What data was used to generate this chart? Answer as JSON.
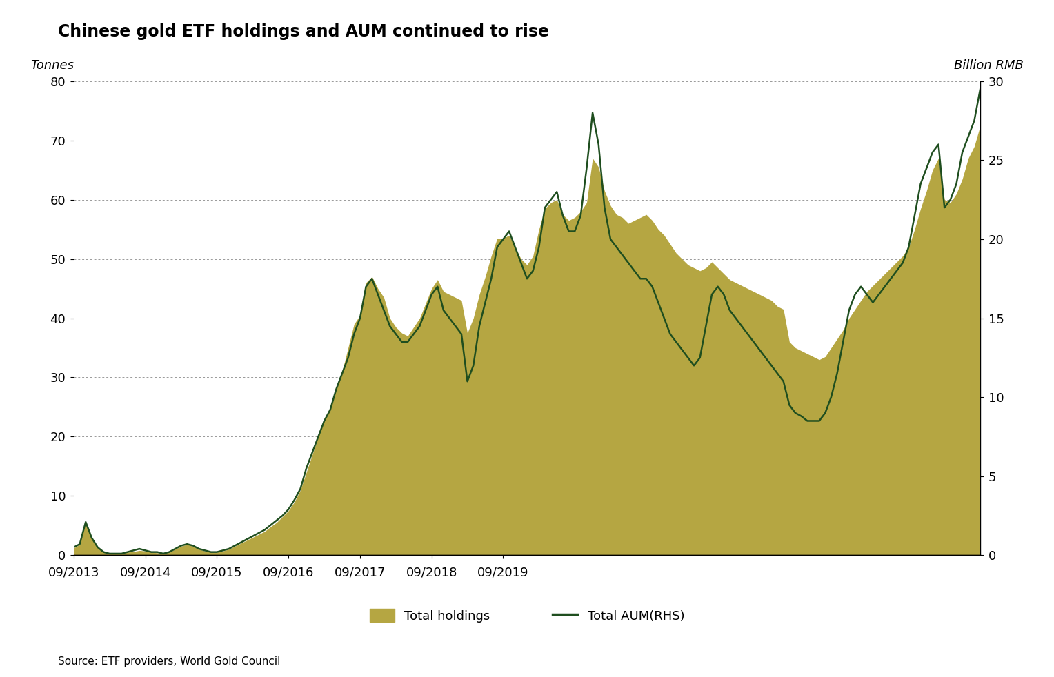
{
  "title": "Chinese gold ETF holdings and AUM continued to rise",
  "ylabel_left": "Tonnes",
  "ylabel_right": "Billion RMB",
  "source": "Source: ETF providers, World Gold Council",
  "ylim_left": [
    0,
    80
  ],
  "ylim_right": [
    0,
    30
  ],
  "yticks_left": [
    0,
    10,
    20,
    30,
    40,
    50,
    60,
    70,
    80
  ],
  "yticks_right": [
    0,
    5,
    10,
    15,
    20,
    25,
    30
  ],
  "xtick_labels": [
    "09/2013",
    "09/2014",
    "09/2015",
    "09/2016",
    "09/2017",
    "09/2018",
    "09/2019"
  ],
  "fill_color": "#b5a642",
  "fill_alpha": 1.0,
  "line_color": "#1f4e1f",
  "line_width": 1.8,
  "background_color": "#ffffff",
  "legend_holdings": "Total holdings",
  "legend_aum": "Total AUM(RHS)",
  "holdings": [
    1.2,
    1.8,
    5.5,
    3.0,
    1.2,
    0.5,
    0.3,
    0.2,
    0.3,
    0.5,
    0.6,
    0.8,
    0.7,
    0.5,
    0.4,
    0.3,
    0.5,
    1.0,
    1.5,
    1.8,
    1.5,
    1.0,
    0.7,
    0.5,
    0.5,
    0.7,
    1.0,
    1.5,
    2.0,
    2.5,
    3.0,
    3.5,
    4.0,
    4.8,
    5.5,
    6.5,
    7.5,
    9.0,
    11.0,
    14.0,
    17.0,
    20.0,
    23.0,
    25.0,
    28.0,
    31.0,
    35.0,
    39.0,
    40.5,
    46.0,
    47.0,
    45.0,
    43.5,
    40.0,
    38.5,
    37.5,
    37.0,
    38.5,
    40.0,
    42.5,
    45.0,
    46.5,
    44.5,
    44.0,
    43.5,
    43.0,
    37.5,
    40.0,
    44.0,
    47.0,
    50.5,
    53.5,
    53.5,
    54.0,
    52.0,
    50.0,
    49.0,
    50.5,
    55.0,
    58.5,
    59.5,
    60.0,
    57.5,
    56.5,
    57.0,
    58.0,
    59.5,
    67.0,
    65.5,
    61.5,
    59.0,
    57.5,
    57.0,
    56.0,
    56.5,
    57.0,
    57.5,
    56.5,
    55.0,
    54.0,
    52.5,
    51.0,
    50.0,
    49.0,
    48.5,
    48.0,
    48.5,
    49.5,
    48.5,
    47.5,
    46.5,
    46.0,
    45.5,
    45.0,
    44.5,
    44.0,
    43.5,
    43.0,
    42.0,
    41.5,
    36.0,
    35.0,
    34.5,
    34.0,
    33.5,
    33.0,
    33.5,
    35.0,
    36.5,
    38.0,
    40.0,
    41.5,
    43.0,
    44.5,
    45.5,
    46.5,
    47.5,
    48.5,
    49.5,
    50.5,
    52.0,
    55.0,
    58.5,
    61.5,
    65.0,
    67.0,
    60.0,
    59.5,
    61.0,
    63.5,
    67.0,
    69.0,
    72.5
  ],
  "aum": [
    0.5,
    0.7,
    2.1,
    1.1,
    0.5,
    0.2,
    0.1,
    0.1,
    0.1,
    0.2,
    0.3,
    0.4,
    0.3,
    0.2,
    0.2,
    0.1,
    0.2,
    0.4,
    0.6,
    0.7,
    0.6,
    0.4,
    0.3,
    0.2,
    0.2,
    0.3,
    0.4,
    0.6,
    0.8,
    1.0,
    1.2,
    1.4,
    1.6,
    1.9,
    2.2,
    2.5,
    2.9,
    3.5,
    4.2,
    5.5,
    6.5,
    7.5,
    8.5,
    9.2,
    10.5,
    11.5,
    12.5,
    14.0,
    15.0,
    17.0,
    17.5,
    16.5,
    15.5,
    14.5,
    14.0,
    13.5,
    13.5,
    14.0,
    14.5,
    15.5,
    16.5,
    17.0,
    15.5,
    15.0,
    14.5,
    14.0,
    11.0,
    12.0,
    14.5,
    16.0,
    17.5,
    19.5,
    20.0,
    20.5,
    19.5,
    18.5,
    17.5,
    18.0,
    19.5,
    22.0,
    22.5,
    23.0,
    21.5,
    20.5,
    20.5,
    21.5,
    24.5,
    28.0,
    26.0,
    22.0,
    20.0,
    19.5,
    19.0,
    18.5,
    18.0,
    17.5,
    17.5,
    17.0,
    16.0,
    15.0,
    14.0,
    13.5,
    13.0,
    12.5,
    12.0,
    12.5,
    14.5,
    16.5,
    17.0,
    16.5,
    15.5,
    15.0,
    14.5,
    14.0,
    13.5,
    13.0,
    12.5,
    12.0,
    11.5,
    11.0,
    9.5,
    9.0,
    8.8,
    8.5,
    8.5,
    8.5,
    9.0,
    10.0,
    11.5,
    13.5,
    15.5,
    16.5,
    17.0,
    16.5,
    16.0,
    16.5,
    17.0,
    17.5,
    18.0,
    18.5,
    19.5,
    21.5,
    23.5,
    24.5,
    25.5,
    26.0,
    22.0,
    22.5,
    23.5,
    25.5,
    26.5,
    27.5,
    29.5
  ]
}
